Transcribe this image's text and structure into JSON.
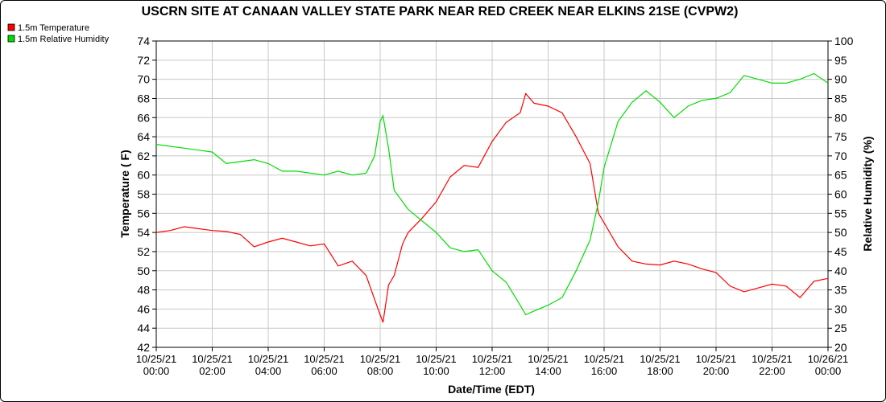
{
  "chart_data": {
    "type": "line",
    "title": "USCRN SITE AT CANAAN VALLEY STATE PARK NEAR RED CREEK NEAR ELKINS 21SE (CVPW2)",
    "xlabel": "Date/Time (EDT)",
    "ylabel": "Temperature ( F)",
    "y2label": "Relative Humidity (%)",
    "xlim_hours": [
      0,
      24
    ],
    "ylim": [
      42,
      74
    ],
    "y2lim": [
      20,
      100
    ],
    "yticks": [
      42,
      44,
      46,
      48,
      50,
      52,
      54,
      56,
      58,
      60,
      62,
      64,
      66,
      68,
      70,
      72,
      74
    ],
    "y2ticks": [
      20,
      25,
      30,
      35,
      40,
      45,
      50,
      55,
      60,
      65,
      70,
      75,
      80,
      85,
      90,
      95,
      100
    ],
    "xticks": [
      {
        "h": 0,
        "date": "10/25/21",
        "time": "00:00"
      },
      {
        "h": 2,
        "date": "10/25/21",
        "time": "02:00"
      },
      {
        "h": 4,
        "date": "10/25/21",
        "time": "04:00"
      },
      {
        "h": 6,
        "date": "10/25/21",
        "time": "06:00"
      },
      {
        "h": 8,
        "date": "10/25/21",
        "time": "08:00"
      },
      {
        "h": 10,
        "date": "10/25/21",
        "time": "10:00"
      },
      {
        "h": 12,
        "date": "10/25/21",
        "time": "12:00"
      },
      {
        "h": 14,
        "date": "10/25/21",
        "time": "14:00"
      },
      {
        "h": 16,
        "date": "10/25/21",
        "time": "16:00"
      },
      {
        "h": 18,
        "date": "10/25/21",
        "time": "18:00"
      },
      {
        "h": 20,
        "date": "10/25/21",
        "time": "20:00"
      },
      {
        "h": 22,
        "date": "10/25/21",
        "time": "22:00"
      },
      {
        "h": 24,
        "date": "10/26/21",
        "time": "00:00"
      }
    ],
    "grid": true,
    "legend_position": "top-left",
    "series": [
      {
        "name": "1.5m Temperature",
        "axis": "left",
        "color": "#ff0000",
        "x": [
          0,
          0.5,
          1,
          1.5,
          2,
          2.5,
          3,
          3.5,
          4,
          4.5,
          5,
          5.5,
          6,
          6.5,
          7,
          7.5,
          7.9,
          8.1,
          8.3,
          8.5,
          8.8,
          9,
          9.5,
          10,
          10.5,
          11,
          11.5,
          12,
          12.5,
          13,
          13.2,
          13.5,
          14,
          14.5,
          15,
          15.5,
          15.8,
          16,
          16.5,
          17,
          17.5,
          18,
          18.5,
          19,
          19.5,
          20,
          20.5,
          21,
          21.5,
          22,
          22.5,
          23,
          23.5,
          24
        ],
        "y": [
          54.0,
          54.2,
          54.6,
          54.4,
          54.2,
          54.1,
          53.8,
          52.5,
          53.0,
          53.4,
          53.0,
          52.6,
          52.8,
          50.5,
          51.0,
          49.5,
          46.2,
          44.6,
          48.5,
          49.5,
          52.8,
          54.0,
          55.5,
          57.2,
          59.8,
          61.0,
          60.8,
          63.5,
          65.5,
          66.5,
          68.5,
          67.5,
          67.2,
          66.5,
          64.0,
          61.2,
          56.0,
          55.0,
          52.5,
          51.0,
          50.7,
          50.6,
          51.0,
          50.7,
          50.2,
          49.8,
          48.4,
          47.8,
          48.2,
          48.6,
          48.4,
          47.2,
          48.9,
          49.2
        ]
      },
      {
        "name": "1.5m Relative Humidity",
        "axis": "right",
        "color": "#00dd00",
        "x": [
          0,
          1,
          2,
          2.5,
          3,
          3.5,
          4,
          4.5,
          5,
          5.5,
          6,
          6.5,
          7,
          7.5,
          7.8,
          8,
          8.1,
          8.3,
          8.5,
          9,
          9.5,
          10,
          10.5,
          11,
          11.5,
          12,
          12.5,
          13,
          13.2,
          13.5,
          14,
          14.5,
          15,
          15.5,
          15.8,
          16,
          16.5,
          17,
          17.5,
          18,
          18.5,
          19,
          19.5,
          20,
          20.5,
          21,
          21.5,
          22,
          22.5,
          23,
          23.5,
          24
        ],
        "y": [
          73,
          72,
          71,
          68,
          68.5,
          69,
          68,
          66,
          66,
          65.5,
          65,
          66,
          65,
          65.5,
          70,
          79,
          80.5,
          72,
          61,
          56,
          53,
          50,
          46,
          45,
          45.5,
          40,
          37,
          31,
          28.5,
          29.5,
          31,
          33,
          40,
          48,
          58,
          67,
          79,
          84,
          87,
          84,
          80,
          83,
          84.5,
          85,
          86.5,
          91,
          90,
          89,
          89,
          90,
          91.5,
          89
        ]
      }
    ]
  }
}
